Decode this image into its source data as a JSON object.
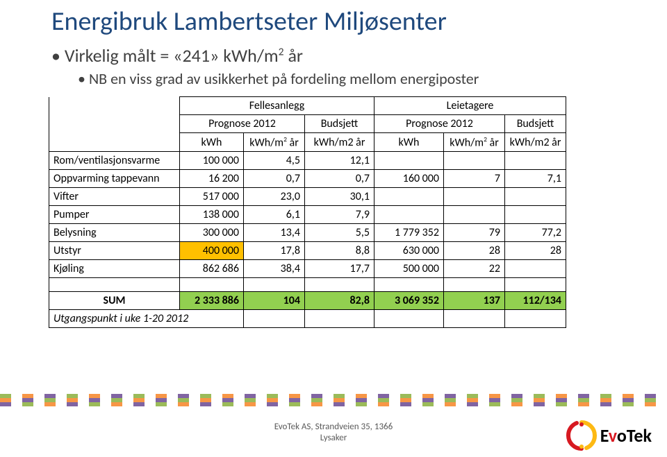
{
  "title": "Energibruk Lambertseter Miljøsenter",
  "bullets": {
    "b1_pre": "Virkelig målt  = «241» kWh/m",
    "b1_sup": "2",
    "b1_post": " år",
    "b2": "NB en viss grad av usikkerhet på fordeling mellom energiposter"
  },
  "table": {
    "group_headers": {
      "g1": "Fellesanlegg",
      "g2": "Leietagere"
    },
    "sub_headers": {
      "s1": "Prognose 2012",
      "s2": "Budsjett",
      "s3": "Prognose 2012",
      "s4": "Budsjett"
    },
    "unit_headers": {
      "u1": "kWh",
      "u2_pre": "kWh/m",
      "u2_sup": "2",
      "u2_post": " år",
      "u3": "kWh/m2 år",
      "u4": "kWh",
      "u5_pre": "kWh/m",
      "u5_sup": "2",
      "u5_post": " år",
      "u6": "kWh/m2 år"
    },
    "rows": [
      {
        "label": "Rom/ventilasjonsvarme",
        "c1": "100 000",
        "c2": "4,5",
        "c3": "12,1",
        "c4": "",
        "c5": "",
        "c6": ""
      },
      {
        "label": "Oppvarming tappevann",
        "c1": "16 200",
        "c2": "0,7",
        "c3": "0,7",
        "c4": "160 000",
        "c5": "7",
        "c6": "7,1"
      },
      {
        "label": "Vifter",
        "c1": "517 000",
        "c2": "23,0",
        "c3": "30,1",
        "c4": "",
        "c5": "",
        "c6": ""
      },
      {
        "label": "Pumper",
        "c1": "138 000",
        "c2": "6,1",
        "c3": "7,9",
        "c4": "",
        "c5": "",
        "c6": ""
      },
      {
        "label": "Belysning",
        "c1": "300 000",
        "c2": "13,4",
        "c3": "5,5",
        "c4": "1 779 352",
        "c5": "79",
        "c6": "77,2"
      },
      {
        "label": "Utstyr",
        "c1": "400 000",
        "c2": "17,8",
        "c3": "8,8",
        "c4": "630 000",
        "c5": "28",
        "c6": "28",
        "hl_c1": true
      },
      {
        "label": "Kjøling",
        "c1": "862 686",
        "c2": "38,4",
        "c3": "17,7",
        "c4": "500 000",
        "c5": "22",
        "c6": ""
      }
    ],
    "sum_row": {
      "label": "SUM",
      "c1": "2 333 886",
      "c2": "104",
      "c3": "82,8",
      "c4": "3 069 352",
      "c5": "137",
      "c6": "112/134"
    },
    "note_row": {
      "label": "Utgangspunkt i uke 1-20 2012"
    },
    "colors": {
      "orange": "#ffc000",
      "green": "#92d050"
    }
  },
  "footer": {
    "line1": "EvoTek AS, Strandveien 35, 1366",
    "line2": "Lysaker"
  },
  "logo": {
    "text_pre": "E",
    "text_v": "v",
    "text_post": "oTek"
  },
  "stripes": {
    "a": "#9bbb59",
    "b": "#f79646",
    "c": "#8064a2",
    "d": "#ffffff"
  }
}
